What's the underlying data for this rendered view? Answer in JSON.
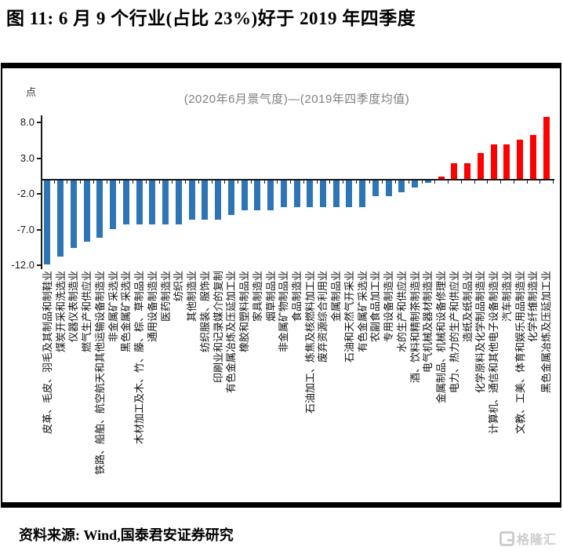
{
  "title": "图 11:  6 月 9 个行业(占比 23%)好于 2019 年四季度",
  "footer": {
    "source": "资料来源: Wind,国泰君安证券研究",
    "watermark": "格隆汇"
  },
  "chart_data": {
    "type": "bar",
    "title": "(2020年6月景气度)—(2019年四季度均值)",
    "ylabel": "点",
    "ytick_labels": [
      "8.0",
      "3.0",
      "-2.0",
      "-7.0",
      "-12.0"
    ],
    "ylim": [
      -12.6,
      9.3
    ],
    "grid": false,
    "legend": "none",
    "positive_color": "#FF0000",
    "negative_color": "#2E75B6",
    "axis_color": "#1a1a1a",
    "categories": [
      "皮革、毛皮、羽毛及其制品和制鞋业",
      "煤炭开采和洗选业",
      "仪器仪表制造业",
      "燃气生产和供应业",
      "铁路、船舶、航空航天和其他运输设备制造业",
      "非金属矿采选业",
      "黑色金属矿采选业",
      "木材加工及木、竹、藤、棕、草制品业",
      "通用设备制造业",
      "医药制造业",
      "纺织业",
      "其他制造业",
      "纺织服装、服饰业",
      "印刷业和记录媒介的复制",
      "有色金属冶炼及压延加工业",
      "橡胶和塑料制品业",
      "家具制造业",
      "烟草制品业",
      "非金属矿物制品业",
      "食品制造业",
      "石油加工、炼焦及核燃料加工业",
      "废弃资源综合利用业",
      "金属制品业",
      "石油和天然气开采业",
      "有色金属矿采选业",
      "农副食品加工业",
      "专用设备制造业",
      "水的生产和供应业",
      "酒、饮料和精制茶制造业",
      "电气机械及器材制造业",
      "金属制品、机械和设备修理业",
      "电力、热力的生产和供应业",
      "造纸及纸制品业",
      "化学原料及化学制品制造业",
      "计算机、通信和其他电子设备制造业",
      "汽车制造业",
      "文教、工美、体育和娱乐用品制造业",
      "化学纤维制造业",
      "黑色金属冶炼及压延加工业"
    ],
    "values": [
      -11.8,
      -10.7,
      -9.5,
      -8.6,
      -8.0,
      -6.8,
      -6.2,
      -6.2,
      -6.2,
      -6.2,
      -6.2,
      -5.5,
      -5.5,
      -5.5,
      -4.8,
      -4.2,
      -4.2,
      -4.2,
      -3.7,
      -3.7,
      -3.7,
      -3.7,
      -3.7,
      -3.7,
      -3.7,
      -2.2,
      -2.2,
      -1.6,
      -1.0,
      -0.3,
      0.4,
      2.3,
      2.3,
      3.7,
      5.0,
      5.0,
      5.6,
      6.3,
      8.8
    ]
  }
}
